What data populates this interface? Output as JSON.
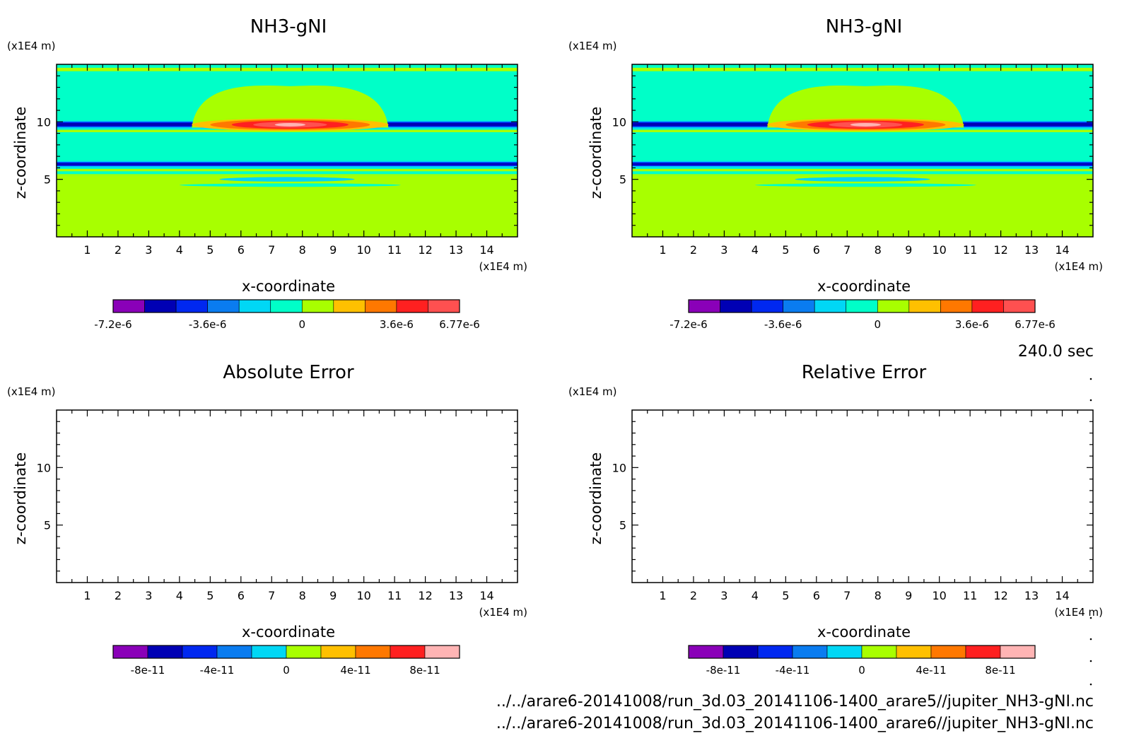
{
  "colors": {
    "palette": [
      "#8a00b8",
      "#0000b4",
      "#0028f0",
      "#0a7cf0",
      "#00d7f5",
      "#00ffc8",
      "#a8ff00",
      "#ffc000",
      "#ff7800",
      "#ff2020",
      "#ff5050",
      "#ffb4b4"
    ],
    "background": "#00ffc8",
    "bottom_layer": "#a8ff00"
  },
  "time_label": "240.0 sec",
  "files": [
    "../../arare6-20141008/run_3d.03_20141106-1400_arare5//jupiter_NH3-gNI.nc",
    "../../arare6-20141008/run_3d.03_20141106-1400_arare6//jupiter_NH3-gNI.nc"
  ],
  "chart_data": [
    {
      "type": "heatmap",
      "title": "NH3-gNI",
      "xlabel": "x-coordinate",
      "ylabel": "z-coordinate",
      "x_unit": "(x1E4 m)",
      "y_unit": "(x1E4 m)",
      "xlim": [
        0,
        15
      ],
      "ylim": [
        0,
        15
      ],
      "x_ticks": [
        "1",
        "2",
        "3",
        "4",
        "5",
        "6",
        "7",
        "8",
        "9",
        "10",
        "11",
        "12",
        "13",
        "14"
      ],
      "y_ticks": [
        "5",
        "10"
      ],
      "colorbar": {
        "levels": 11,
        "labels": [
          "-7.2e-6",
          "-3.6e-6",
          "0",
          "3.6e-6",
          "6.77e-6"
        ]
      },
      "filled": true
    },
    {
      "type": "heatmap",
      "title": "NH3-gNI",
      "xlabel": "x-coordinate",
      "ylabel": "z-coordinate",
      "x_unit": "(x1E4 m)",
      "y_unit": "(x1E4 m)",
      "xlim": [
        0,
        15
      ],
      "ylim": [
        0,
        15
      ],
      "x_ticks": [
        "1",
        "2",
        "3",
        "4",
        "5",
        "6",
        "7",
        "8",
        "9",
        "10",
        "11",
        "12",
        "13",
        "14"
      ],
      "y_ticks": [
        "5",
        "10"
      ],
      "colorbar": {
        "levels": 11,
        "labels": [
          "-7.2e-6",
          "-3.6e-6",
          "0",
          "3.6e-6",
          "6.77e-6"
        ]
      },
      "filled": true
    },
    {
      "type": "heatmap",
      "title": "Absolute Error",
      "xlabel": "x-coordinate",
      "ylabel": "z-coordinate",
      "x_unit": "(x1E4 m)",
      "y_unit": "(x1E4 m)",
      "xlim": [
        0,
        15
      ],
      "ylim": [
        0,
        15
      ],
      "x_ticks": [
        "1",
        "2",
        "3",
        "4",
        "5",
        "6",
        "7",
        "8",
        "9",
        "10",
        "11",
        "12",
        "13",
        "14"
      ],
      "y_ticks": [
        "5",
        "10"
      ],
      "colorbar": {
        "levels": 10,
        "labels": [
          "-8e-11",
          "-4e-11",
          "0",
          "4e-11",
          "8e-11"
        ]
      },
      "filled": false
    },
    {
      "type": "heatmap",
      "title": "Relative Error",
      "xlabel": "x-coordinate",
      "ylabel": "z-coordinate",
      "x_unit": "(x1E4 m)",
      "y_unit": "(x1E4 m)",
      "xlim": [
        0,
        15
      ],
      "ylim": [
        0,
        15
      ],
      "x_ticks": [
        "1",
        "2",
        "3",
        "4",
        "5",
        "6",
        "7",
        "8",
        "9",
        "10",
        "11",
        "12",
        "13",
        "14"
      ],
      "y_ticks": [
        "5",
        "10"
      ],
      "colorbar": {
        "levels": 10,
        "labels": [
          "-8e-11",
          "-4e-11",
          "0",
          "4e-11",
          "8e-11"
        ]
      },
      "filled": false
    }
  ]
}
